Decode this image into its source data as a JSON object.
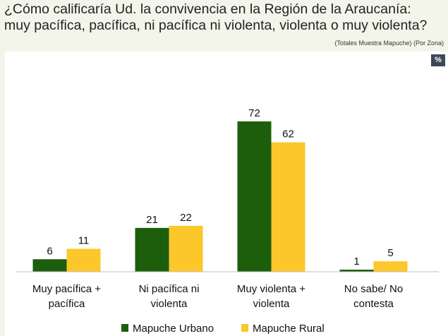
{
  "header": {
    "title": "¿Cómo calificaría Ud. la convivencia en la Región de la Araucanía: muy pacífica, pacífica, ni pacífica ni violenta, violenta o muy violenta?",
    "subtitle": "(Totales Muestra Mapuche) (Por Zona)",
    "unit_badge": "%"
  },
  "chart_data": {
    "type": "bar",
    "title": "¿Cómo calificaría Ud. la convivencia en la Región de la Araucanía: muy pacífica, pacífica, ni pacífica ni violenta, violenta o muy violenta?",
    "xlabel": "",
    "ylabel": "%",
    "ylim": [
      0,
      80
    ],
    "categories": [
      [
        "Muy pacífica +",
        "pacífica"
      ],
      [
        "Ni pacífica ni",
        "violenta"
      ],
      [
        "Muy violenta +",
        "violenta"
      ],
      [
        "No sabe/ No",
        "contesta"
      ]
    ],
    "series": [
      {
        "name": "Mapuche Urbano",
        "color": "#1d5e0c",
        "values": [
          6,
          21,
          72,
          1
        ]
      },
      {
        "name": "Mapuche Rural",
        "color": "#fcc72a",
        "values": [
          11,
          22,
          62,
          5
        ]
      }
    ],
    "legend_position": "bottom"
  }
}
